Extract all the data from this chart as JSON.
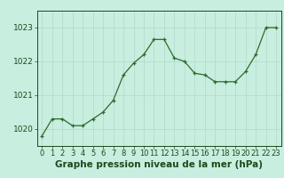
{
  "x": [
    0,
    1,
    2,
    3,
    4,
    5,
    6,
    7,
    8,
    9,
    10,
    11,
    12,
    13,
    14,
    15,
    16,
    17,
    18,
    19,
    20,
    21,
    22,
    23
  ],
  "y": [
    1019.8,
    1020.3,
    1020.3,
    1020.1,
    1020.1,
    1020.3,
    1020.5,
    1020.85,
    1021.6,
    1021.95,
    1022.2,
    1022.65,
    1022.65,
    1022.1,
    1022.0,
    1021.65,
    1021.6,
    1021.4,
    1021.4,
    1021.4,
    1021.7,
    1022.2,
    1023.0,
    1023.0
  ],
  "line_color": "#2d6a2d",
  "marker": "+",
  "marker_color": "#2d6a2d",
  "bg_color": "#c8eee0",
  "grid_color": "#b0d8c8",
  "ylabel_ticks": [
    1020,
    1021,
    1022,
    1023
  ],
  "xlabel_label": "Graphe pression niveau de la mer (hPa)",
  "ylim": [
    1019.5,
    1023.5
  ],
  "xlim": [
    -0.5,
    23.5
  ],
  "xlabel_fontsize": 7.5,
  "tick_fontsize": 6.5,
  "label_color": "#1a4a1a"
}
